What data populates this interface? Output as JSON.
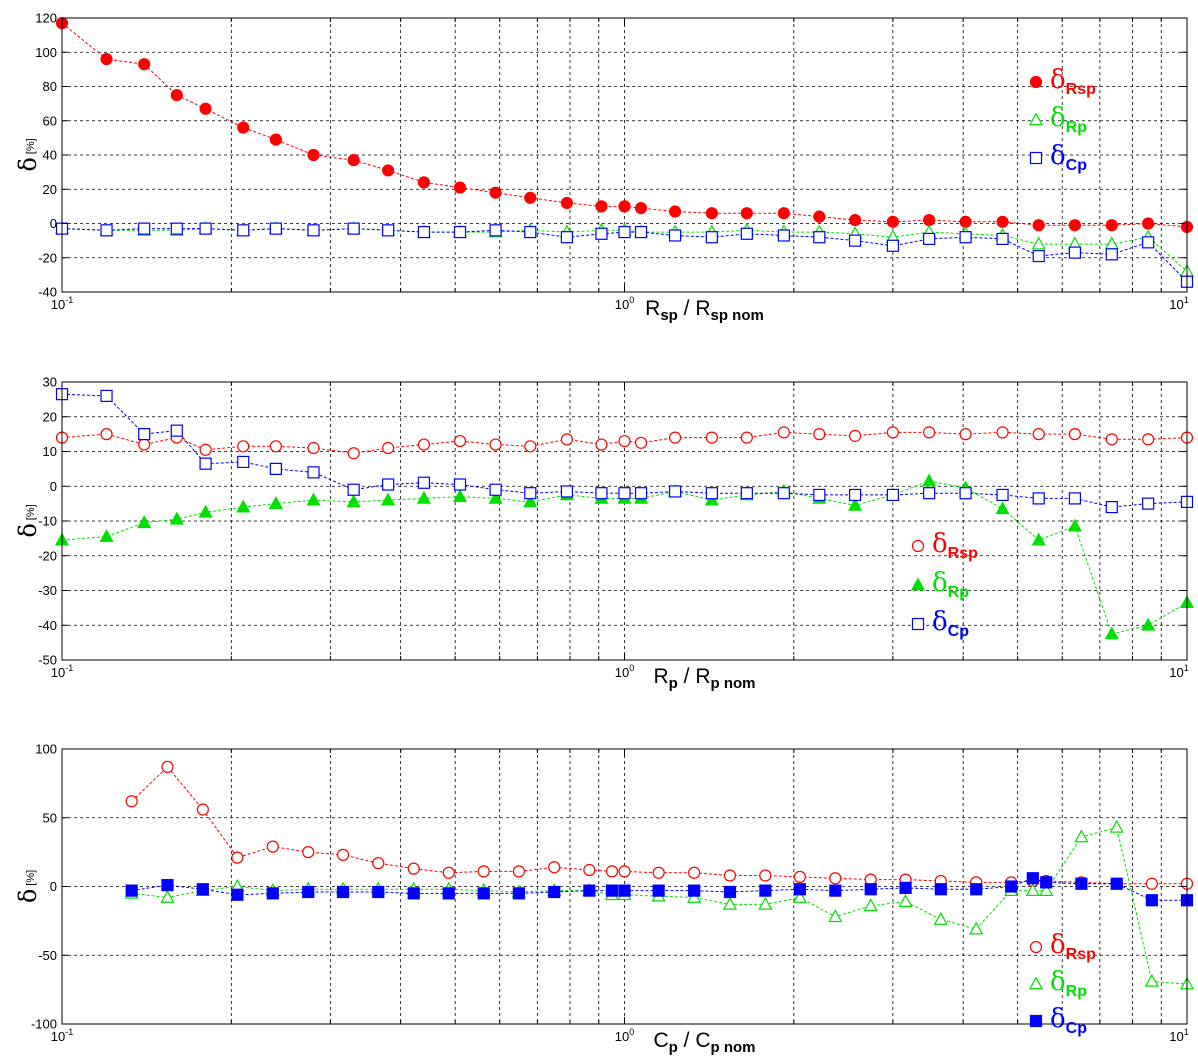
{
  "colors": {
    "red": "#ff0000",
    "green": "#00e000",
    "blue": "#0000ff",
    "grid": "#000000"
  },
  "chart_data": [
    {
      "type": "line",
      "x_scale": "log",
      "xlim": [
        0.1,
        10
      ],
      "ylim": [
        -40,
        120
      ],
      "yticks": [
        -40,
        -20,
        0,
        20,
        40,
        60,
        80,
        100,
        120
      ],
      "grid": true,
      "legend_position": "top-right",
      "xlabel": {
        "main": "R",
        "sub1": "sp",
        "mid": " / R",
        "sub2": "sp nom"
      },
      "ylabel": {
        "main": "δ",
        "unit": "[%]"
      },
      "x": [
        0.1,
        0.12,
        0.14,
        0.16,
        0.18,
        0.21,
        0.24,
        0.28,
        0.33,
        0.38,
        0.44,
        0.51,
        0.59,
        0.68,
        0.79,
        0.91,
        1.0,
        1.07,
        1.23,
        1.43,
        1.65,
        1.92,
        2.22,
        2.57,
        3.0,
        3.48,
        4.04,
        4.7,
        5.45,
        6.32,
        7.35,
        8.53,
        10.0
      ],
      "series": [
        {
          "name": {
            "main": "δ",
            "sub": "Rsp"
          },
          "color": "red",
          "marker": "circle",
          "filled": true,
          "values": [
            117,
            96,
            93,
            75,
            67,
            56,
            49,
            40,
            37,
            31,
            24,
            21,
            18,
            15,
            12,
            10,
            10,
            9,
            7,
            6,
            6,
            6,
            4,
            2,
            1,
            2,
            1,
            1,
            -1,
            -1,
            -1,
            0,
            -2
          ]
        },
        {
          "name": {
            "main": "δ",
            "sub": "Rp"
          },
          "color": "green",
          "marker": "triangle",
          "filled": false,
          "values": [
            -3,
            -4,
            -4,
            -4,
            -3,
            -4,
            -3,
            -4,
            -3,
            -4,
            -5,
            -5,
            -5,
            -4,
            -5,
            -4,
            -4,
            -5,
            -5,
            -5,
            -4,
            -5,
            -5,
            -6,
            -8,
            -5,
            -6,
            -7,
            -12,
            -12,
            -12,
            -8,
            -28
          ]
        },
        {
          "name": {
            "main": "δ",
            "sub": "Cp"
          },
          "color": "blue",
          "marker": "square",
          "filled": false,
          "values": [
            -3,
            -4,
            -3,
            -3,
            -3,
            -4,
            -3,
            -4,
            -3,
            -4,
            -5,
            -5,
            -4,
            -5,
            -8,
            -6,
            -5,
            -5,
            -7,
            -8,
            -6,
            -7,
            -8,
            -10,
            -13,
            -9,
            -8,
            -9,
            -19,
            -17,
            -18,
            -11,
            -34
          ]
        }
      ]
    },
    {
      "type": "line",
      "x_scale": "log",
      "xlim": [
        0.1,
        10
      ],
      "ylim": [
        -50,
        30
      ],
      "yticks": [
        -50,
        -40,
        -30,
        -20,
        -10,
        0,
        10,
        20,
        30
      ],
      "grid": true,
      "legend_position": "bottom-right",
      "xlabel": {
        "main": "R",
        "sub1": "p",
        "mid": " / R",
        "sub2": "p nom"
      },
      "ylabel": {
        "main": "δ",
        "unit": "[%]"
      },
      "x": [
        0.1,
        0.12,
        0.14,
        0.16,
        0.18,
        0.21,
        0.24,
        0.28,
        0.33,
        0.38,
        0.44,
        0.51,
        0.59,
        0.68,
        0.79,
        0.91,
        1.0,
        1.07,
        1.23,
        1.43,
        1.65,
        1.92,
        2.22,
        2.57,
        3.0,
        3.48,
        4.04,
        4.7,
        5.45,
        6.32,
        7.35,
        8.53,
        10.0
      ],
      "series": [
        {
          "name": {
            "main": "δ",
            "sub": "Rsp"
          },
          "color": "red",
          "marker": "circle",
          "filled": false,
          "values": [
            14,
            15,
            12,
            14,
            10.5,
            11.5,
            11.5,
            11,
            9.5,
            11,
            12,
            13,
            12,
            11.5,
            13.5,
            12,
            13,
            12.5,
            14,
            14,
            14,
            15.5,
            15,
            14.5,
            15.5,
            15.5,
            15,
            15.5,
            15,
            15,
            13.5,
            13.5,
            14
          ]
        },
        {
          "name": {
            "main": "δ",
            "sub": "Rp"
          },
          "color": "green",
          "marker": "triangle",
          "filled": true,
          "values": [
            -15.5,
            -14.5,
            -10.5,
            -9.5,
            -7.5,
            -6,
            -5,
            -4,
            -4.5,
            -4,
            -3.5,
            -3,
            -3.5,
            -4.5,
            -2.5,
            -3.5,
            -3.5,
            -3.5,
            -1.5,
            -4,
            -2.5,
            -1.5,
            -3.5,
            -5.5,
            -2.5,
            1.5,
            -0.5,
            -6.5,
            -15.5,
            -11.5,
            -42.5,
            -40,
            -33.5
          ]
        },
        {
          "name": {
            "main": "δ",
            "sub": "Cp"
          },
          "color": "blue",
          "marker": "square",
          "filled": false,
          "values": [
            26.5,
            26,
            15,
            16,
            6.5,
            7,
            5,
            4,
            -1,
            0.5,
            1,
            0.5,
            -1,
            -2,
            -1.5,
            -2,
            -2,
            -2,
            -1.5,
            -2,
            -2,
            -2,
            -2.5,
            -2.5,
            -2.5,
            -2,
            -2,
            -2.5,
            -3.5,
            -3.5,
            -6,
            -5,
            -4.5
          ]
        }
      ]
    },
    {
      "type": "line",
      "x_scale": "log",
      "xlim": [
        0.1,
        10
      ],
      "ylim": [
        -100,
        100
      ],
      "yticks": [
        -100,
        -50,
        0,
        50,
        100
      ],
      "grid": true,
      "legend_position": "bottom-right",
      "xlabel": {
        "main": "C",
        "sub1": "p",
        "mid": " / C",
        "sub2": "p nom"
      },
      "ylabel": {
        "main": "δ",
        "unit": "[%]"
      },
      "x": [
        0.133,
        0.154,
        0.178,
        0.205,
        0.237,
        0.274,
        0.316,
        0.365,
        0.422,
        0.487,
        0.562,
        0.649,
        0.75,
        0.866,
        0.95,
        1.0,
        1.15,
        1.33,
        1.54,
        1.78,
        2.05,
        2.37,
        2.74,
        3.16,
        3.65,
        4.22,
        4.87,
        5.32,
        5.62,
        6.49,
        7.5,
        8.66,
        10.0
      ],
      "series": [
        {
          "name": {
            "main": "δ",
            "sub": "Rsp"
          },
          "color": "red",
          "marker": "circle",
          "filled": false,
          "values": [
            62,
            87,
            56,
            21,
            29,
            25,
            23,
            17,
            13,
            10,
            11,
            11,
            14,
            12,
            11,
            11,
            10,
            10,
            8,
            8,
            7,
            6,
            5,
            5,
            4,
            3,
            3,
            4,
            4,
            3,
            2,
            2,
            2
          ]
        },
        {
          "name": {
            "main": "δ",
            "sub": "Rp"
          },
          "color": "green",
          "marker": "triangle",
          "filled": false,
          "values": [
            -5,
            -8,
            -3,
            0,
            -3,
            -2,
            -2,
            -2,
            -2,
            -2,
            -3,
            -4,
            -3,
            -3,
            -6,
            -6,
            -7,
            -8,
            -13,
            -13,
            -8,
            -22,
            -14,
            -11,
            -24,
            -31,
            -3,
            -3,
            -3,
            36,
            43,
            -69,
            -71
          ]
        },
        {
          "name": {
            "main": "δ",
            "sub": "Cp"
          },
          "color": "blue",
          "marker": "square",
          "filled": true,
          "values": [
            -3,
            1,
            -2,
            -6,
            -5,
            -4,
            -4,
            -4,
            -5,
            -5,
            -5,
            -5,
            -4,
            -3,
            -3,
            -3,
            -3,
            -3,
            -4,
            -3,
            -2,
            -3,
            -2,
            -1,
            -2,
            -2,
            0,
            6,
            3,
            2,
            2,
            -10,
            -10
          ]
        }
      ]
    }
  ]
}
